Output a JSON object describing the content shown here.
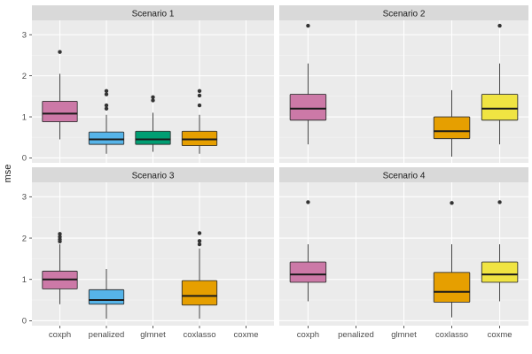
{
  "chart_data": {
    "type": "boxplot",
    "ylabel": "mse",
    "xlabel": "",
    "ylim": [
      -0.12,
      3.35
    ],
    "yticks": [
      0,
      1,
      2,
      3
    ],
    "categories": [
      "coxph",
      "penalized",
      "glmnet",
      "coxlasso",
      "coxme"
    ],
    "colors": {
      "coxph": "#cc79a7",
      "penalized": "#56b4e9",
      "glmnet": "#009e73",
      "coxlasso": "#e69f00",
      "coxme": "#f0e442"
    },
    "facets": [
      {
        "title": "Scenario 1",
        "boxes": [
          {
            "method": "coxph",
            "whisker_low": 0.45,
            "q1": 0.88,
            "median": 1.08,
            "q3": 1.38,
            "whisker_high": 2.05,
            "outliers": [
              2.58
            ]
          },
          {
            "method": "penalized",
            "whisker_low": 0.1,
            "q1": 0.33,
            "median": 0.45,
            "q3": 0.63,
            "whisker_high": 1.05,
            "outliers": [
              1.2,
              1.28,
              1.55,
              1.63
            ]
          },
          {
            "method": "glmnet",
            "whisker_low": 0.15,
            "q1": 0.33,
            "median": 0.45,
            "q3": 0.65,
            "whisker_high": 1.1,
            "outliers": [
              1.4,
              1.48
            ]
          },
          {
            "method": "coxlasso",
            "whisker_low": 0.1,
            "q1": 0.3,
            "median": 0.45,
            "q3": 0.65,
            "whisker_high": 1.05,
            "outliers": [
              1.28,
              1.52,
              1.63
            ]
          }
        ]
      },
      {
        "title": "Scenario 2",
        "boxes": [
          {
            "method": "coxph",
            "whisker_low": 0.33,
            "q1": 0.92,
            "median": 1.2,
            "q3": 1.55,
            "whisker_high": 2.3,
            "outliers": [
              3.22
            ]
          },
          {
            "method": "coxlasso",
            "whisker_low": 0.03,
            "q1": 0.47,
            "median": 0.65,
            "q3": 1.0,
            "whisker_high": 1.65,
            "outliers": []
          },
          {
            "method": "coxme",
            "whisker_low": 0.33,
            "q1": 0.92,
            "median": 1.2,
            "q3": 1.55,
            "whisker_high": 2.3,
            "outliers": [
              3.22
            ]
          }
        ]
      },
      {
        "title": "Scenario 3",
        "boxes": [
          {
            "method": "coxph",
            "whisker_low": 0.4,
            "q1": 0.77,
            "median": 1.0,
            "q3": 1.2,
            "whisker_high": 1.85,
            "outliers": [
              1.92,
              1.97,
              2.03,
              2.1
            ]
          },
          {
            "method": "penalized",
            "whisker_low": 0.05,
            "q1": 0.4,
            "median": 0.5,
            "q3": 0.75,
            "whisker_high": 1.25,
            "outliers": []
          },
          {
            "method": "coxlasso",
            "whisker_low": 0.05,
            "q1": 0.38,
            "median": 0.6,
            "q3": 0.97,
            "whisker_high": 1.75,
            "outliers": [
              1.85,
              1.93,
              2.12
            ]
          }
        ]
      },
      {
        "title": "Scenario 4",
        "boxes": [
          {
            "method": "coxph",
            "whisker_low": 0.47,
            "q1": 0.93,
            "median": 1.12,
            "q3": 1.42,
            "whisker_high": 1.85,
            "outliers": [
              2.87
            ]
          },
          {
            "method": "coxlasso",
            "whisker_low": 0.08,
            "q1": 0.45,
            "median": 0.7,
            "q3": 1.17,
            "whisker_high": 1.85,
            "outliers": [
              2.85
            ]
          },
          {
            "method": "coxme",
            "whisker_low": 0.47,
            "q1": 0.93,
            "median": 1.12,
            "q3": 1.42,
            "whisker_high": 1.85,
            "outliers": [
              2.87
            ]
          }
        ]
      }
    ]
  }
}
